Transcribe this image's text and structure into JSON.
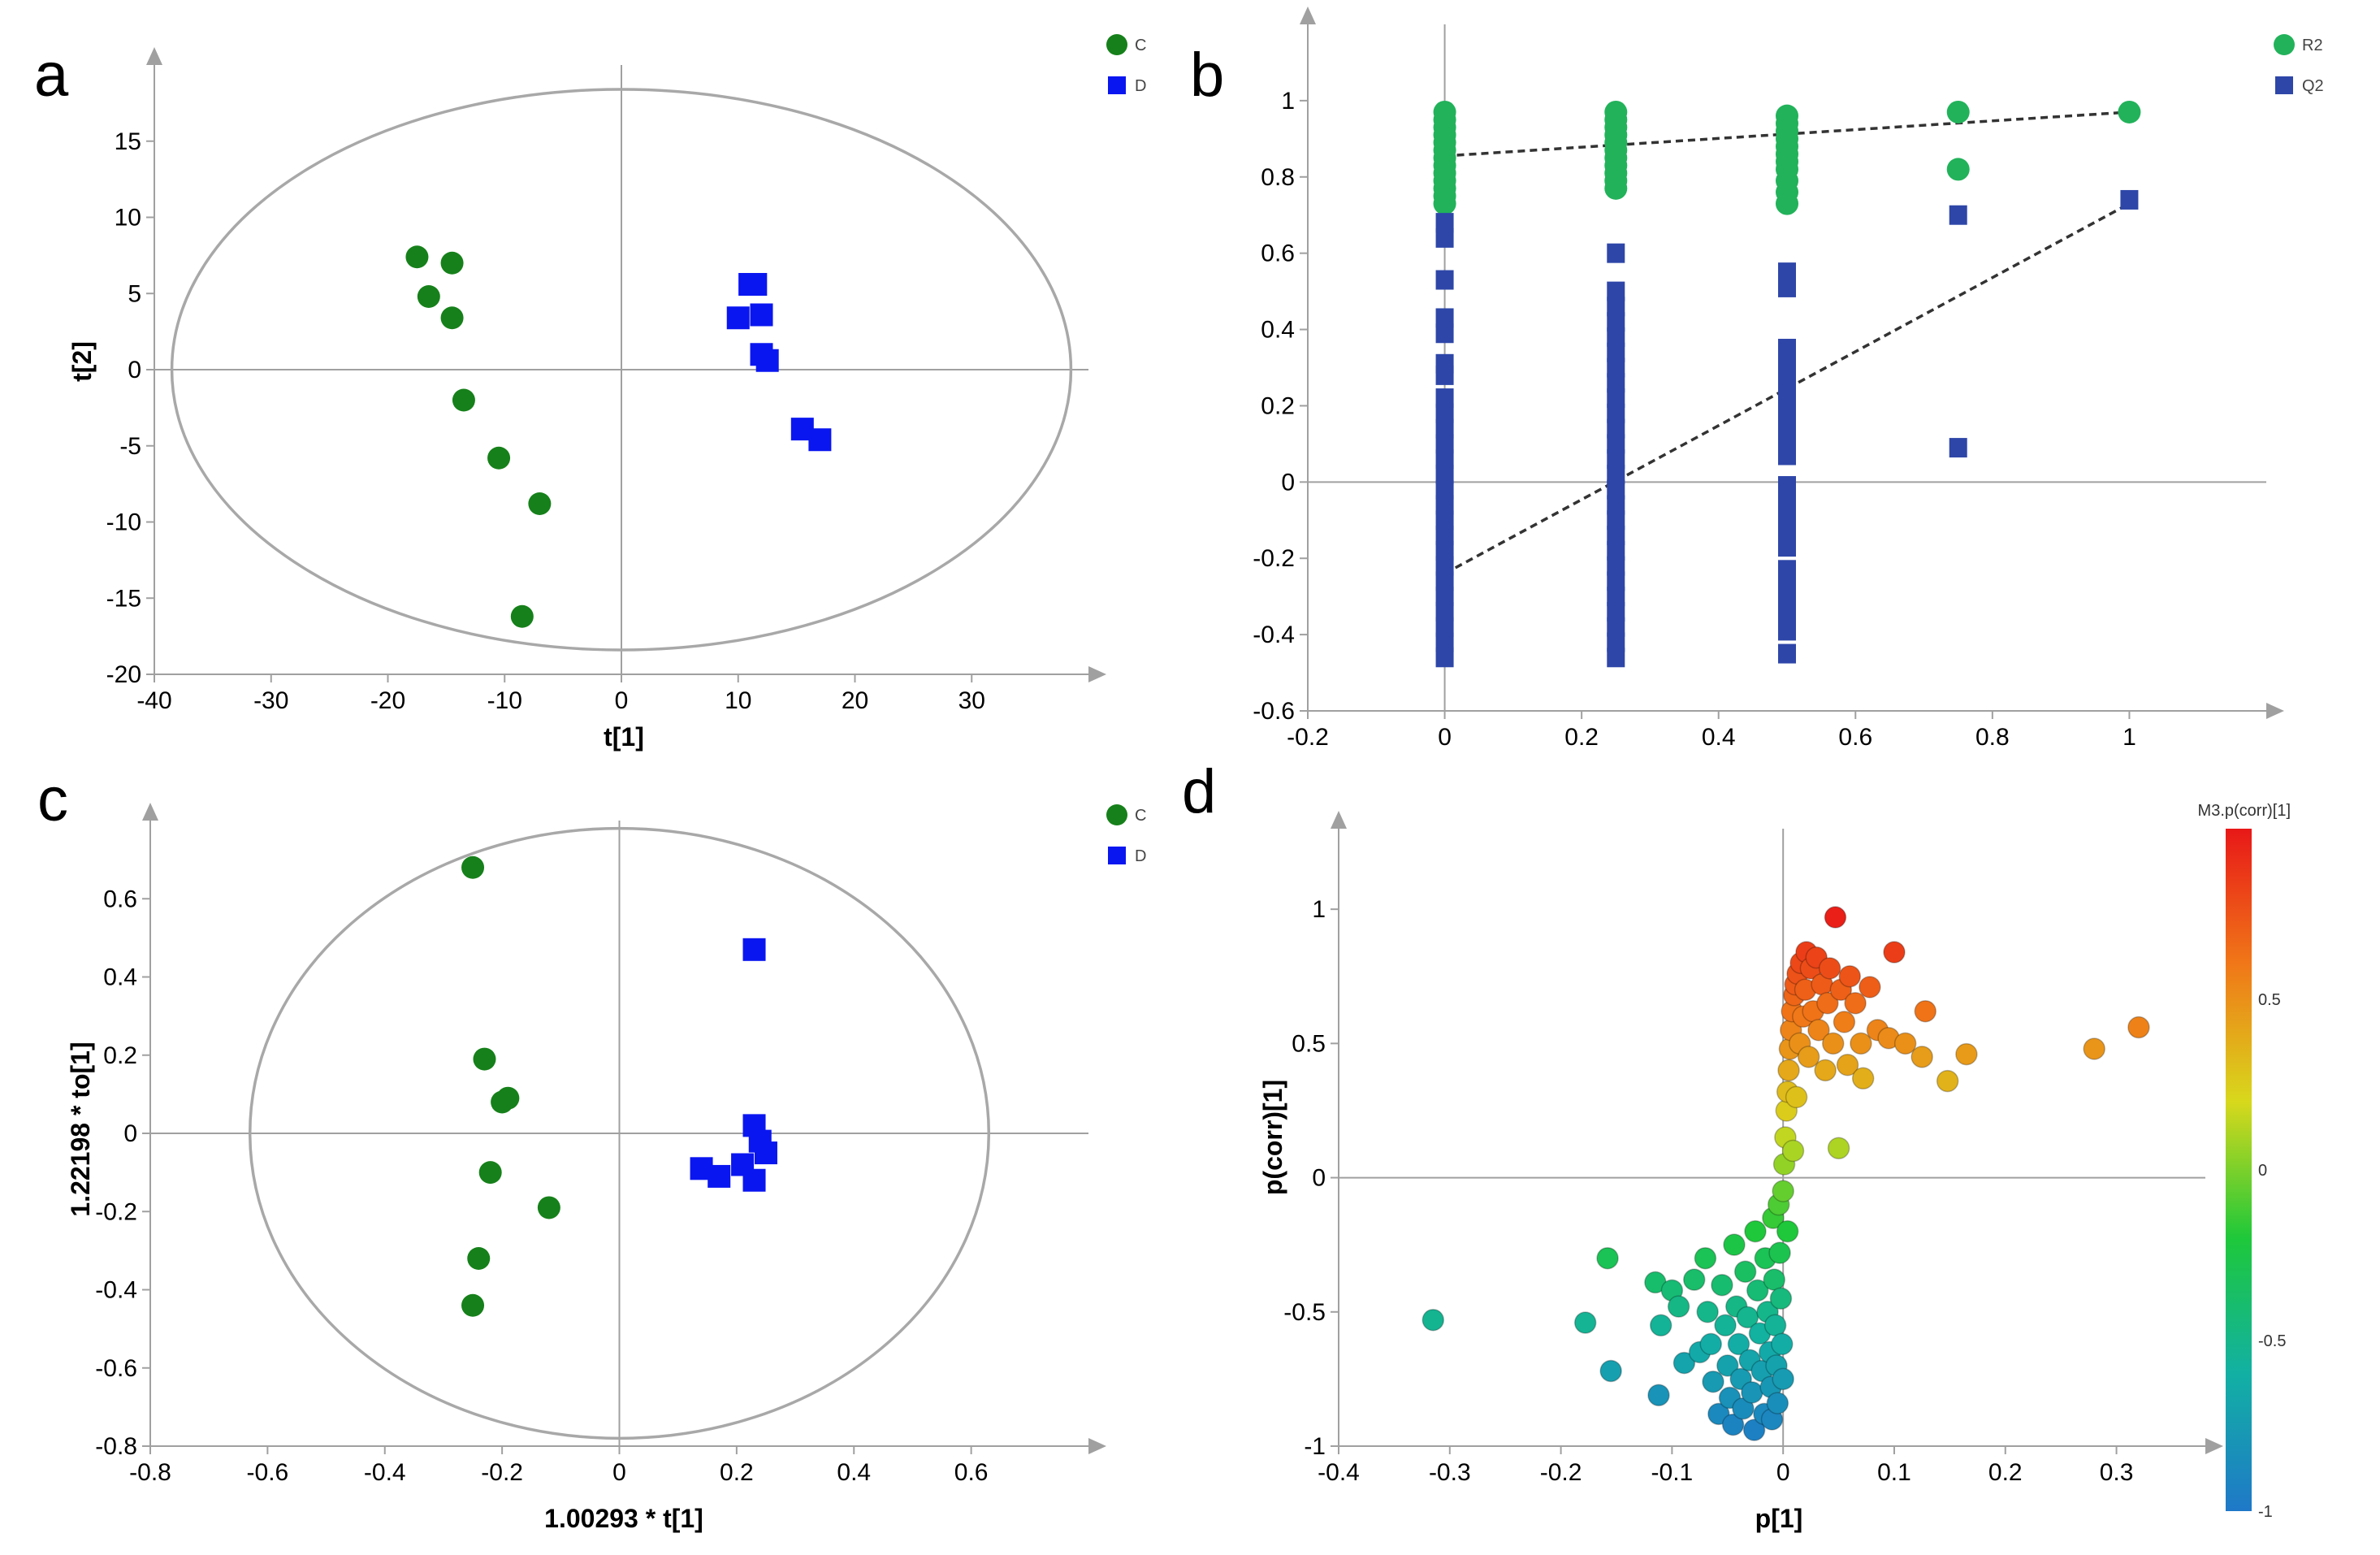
{
  "colors": {
    "green": "#16801a",
    "blue": "#0a16f0",
    "r2": "#22b25a",
    "q2": "#2e46a8",
    "axis": "#a0a0a0",
    "ellipse": "#a8a8a8",
    "colorscale": [
      "#1f78c8",
      "#12b0a4",
      "#1ec83a",
      "#d8d81c",
      "#f07818",
      "#e81818"
    ]
  },
  "chart_data": [
    {
      "id": "a",
      "type": "scatter",
      "panel_letter": "a",
      "xlabel": "t[1]",
      "ylabel": "t[2]",
      "xlim": [
        -40,
        40
      ],
      "ylim": [
        -20,
        20
      ],
      "xticks": [
        "-40",
        "-30",
        "-20",
        "-10",
        "0",
        "10",
        "20",
        "30"
      ],
      "yticks": [
        "-20",
        "-15",
        "-10",
        "-5",
        "0",
        "5",
        "10",
        "15"
      ],
      "ellipse": {
        "rx": 38.5,
        "ry": 18.4
      },
      "legend": [
        "C",
        "D"
      ],
      "series": [
        {
          "name": "C",
          "marker": "circle",
          "points": [
            [
              -17.5,
              7.4
            ],
            [
              -14.5,
              7.0
            ],
            [
              -16.5,
              4.8
            ],
            [
              -14.5,
              3.4
            ],
            [
              -13.5,
              -2.0
            ],
            [
              -10.5,
              -5.8
            ],
            [
              -7.0,
              -8.8
            ],
            [
              -8.5,
              -16.2
            ]
          ]
        },
        {
          "name": "D",
          "marker": "square",
          "points": [
            [
              11.0,
              5.6
            ],
            [
              11.5,
              5.6
            ],
            [
              12.0,
              3.6
            ],
            [
              10.0,
              3.4
            ],
            [
              12.0,
              1.0
            ],
            [
              12.5,
              0.6
            ],
            [
              15.5,
              -3.9
            ],
            [
              17.0,
              -4.6
            ]
          ]
        }
      ]
    },
    {
      "id": "b",
      "type": "scatter",
      "panel_letter": "b",
      "xlabel": "",
      "ylabel": "",
      "xlim": [
        -0.2,
        1.2
      ],
      "ylim": [
        -0.6,
        1.2
      ],
      "xticks": [
        "-0.2",
        "0",
        "0.2",
        "0.4",
        "0.6",
        "0.8",
        "1"
      ],
      "yticks": [
        "-0.6",
        "-0.4",
        "-0.2",
        "0",
        "0.2",
        "0.4",
        "0.6",
        "0.8",
        "1"
      ],
      "legend": [
        "R2",
        "Q2"
      ],
      "series": [
        {
          "name": "R2",
          "marker": "circle",
          "points": [
            [
              0,
              0.97
            ],
            [
              0,
              0.95
            ],
            [
              0,
              0.93
            ],
            [
              0,
              0.91
            ],
            [
              0,
              0.89
            ],
            [
              0,
              0.87
            ],
            [
              0,
              0.85
            ],
            [
              0,
              0.83
            ],
            [
              0,
              0.81
            ],
            [
              0,
              0.79
            ],
            [
              0,
              0.77
            ],
            [
              0,
              0.75
            ],
            [
              0,
              0.73
            ],
            [
              0.25,
              0.97
            ],
            [
              0.25,
              0.95
            ],
            [
              0.25,
              0.93
            ],
            [
              0.25,
              0.91
            ],
            [
              0.25,
              0.89
            ],
            [
              0.25,
              0.87
            ],
            [
              0.25,
              0.85
            ],
            [
              0.25,
              0.83
            ],
            [
              0.25,
              0.81
            ],
            [
              0.25,
              0.79
            ],
            [
              0.25,
              0.77
            ],
            [
              0.5,
              0.96
            ],
            [
              0.5,
              0.94
            ],
            [
              0.5,
              0.92
            ],
            [
              0.5,
              0.9
            ],
            [
              0.5,
              0.88
            ],
            [
              0.5,
              0.86
            ],
            [
              0.5,
              0.84
            ],
            [
              0.5,
              0.82
            ],
            [
              0.5,
              0.79
            ],
            [
              0.5,
              0.76
            ],
            [
              0.5,
              0.73
            ],
            [
              0.75,
              0.97
            ],
            [
              0.75,
              0.82
            ],
            [
              1,
              0.97
            ]
          ]
        },
        {
          "name": "Q2",
          "marker": "square",
          "points": [
            [
              0,
              0.68
            ],
            [
              0,
              0.64
            ],
            [
              0,
              0.53
            ],
            [
              0,
              0.43
            ],
            [
              0,
              0.39
            ],
            [
              0,
              0.31
            ],
            [
              0,
              0.28
            ],
            [
              0,
              0.22
            ],
            [
              0,
              0.18
            ],
            [
              0,
              0.14
            ],
            [
              0,
              0.1
            ],
            [
              0,
              0.06
            ],
            [
              0,
              0.02
            ],
            [
              0,
              -0.02
            ],
            [
              0,
              -0.06
            ],
            [
              0,
              -0.1
            ],
            [
              0,
              -0.14
            ],
            [
              0,
              -0.18
            ],
            [
              0,
              -0.22
            ],
            [
              0,
              -0.26
            ],
            [
              0,
              -0.3
            ],
            [
              0,
              -0.34
            ],
            [
              0,
              -0.38
            ],
            [
              0,
              -0.42
            ],
            [
              0,
              -0.46
            ],
            [
              0.25,
              0.6
            ],
            [
              0.25,
              0.5
            ],
            [
              0.25,
              0.46
            ],
            [
              0.25,
              0.42
            ],
            [
              0.25,
              0.38
            ],
            [
              0.25,
              0.34
            ],
            [
              0.25,
              0.3
            ],
            [
              0.25,
              0.26
            ],
            [
              0.25,
              0.22
            ],
            [
              0.25,
              0.18
            ],
            [
              0.25,
              0.14
            ],
            [
              0.25,
              0.1
            ],
            [
              0.25,
              0.06
            ],
            [
              0.25,
              0.02
            ],
            [
              0.25,
              -0.02
            ],
            [
              0.25,
              -0.06
            ],
            [
              0.25,
              -0.1
            ],
            [
              0.25,
              -0.14
            ],
            [
              0.25,
              -0.18
            ],
            [
              0.25,
              -0.22
            ],
            [
              0.25,
              -0.26
            ],
            [
              0.25,
              -0.3
            ],
            [
              0.25,
              -0.34
            ],
            [
              0.25,
              -0.38
            ],
            [
              0.25,
              -0.42
            ],
            [
              0.25,
              -0.46
            ],
            [
              0.5,
              0.55
            ],
            [
              0.5,
              0.51
            ],
            [
              0.5,
              0.35
            ],
            [
              0.5,
              0.31
            ],
            [
              0.5,
              0.27
            ],
            [
              0.5,
              0.23
            ],
            [
              0.5,
              0.19
            ],
            [
              0.5,
              0.15
            ],
            [
              0.5,
              0.11
            ],
            [
              0.5,
              0.07
            ],
            [
              0.5,
              -0.01
            ],
            [
              0.5,
              -0.05
            ],
            [
              0.5,
              -0.09
            ],
            [
              0.5,
              -0.13
            ],
            [
              0.5,
              -0.17
            ],
            [
              0.5,
              -0.23
            ],
            [
              0.5,
              -0.27
            ],
            [
              0.5,
              -0.31
            ],
            [
              0.5,
              -0.35
            ],
            [
              0.5,
              -0.39
            ],
            [
              0.5,
              -0.45
            ],
            [
              0.75,
              0.7
            ],
            [
              0.75,
              0.09
            ],
            [
              1,
              0.74
            ]
          ]
        }
      ],
      "lines": [
        {
          "name": "R2 fit",
          "from": [
            0,
            0.855
          ],
          "to": [
            1,
            0.97
          ]
        },
        {
          "name": "Q2 fit",
          "from": [
            0,
            -0.24
          ],
          "to": [
            1,
            0.73
          ]
        }
      ]
    },
    {
      "id": "c",
      "type": "scatter",
      "panel_letter": "c",
      "xlabel": "1.00293 * t[1]",
      "ylabel": "1.22198 * to[1]",
      "xlim": [
        -0.8,
        0.8
      ],
      "ylim": [
        -0.8,
        0.8
      ],
      "xticks": [
        "-0.8",
        "-0.6",
        "-0.4",
        "-0.2",
        "0",
        "0.2",
        "0.4",
        "0.6"
      ],
      "yticks": [
        "-0.8",
        "-0.6",
        "-0.4",
        "-0.2",
        "0",
        "0.2",
        "0.4",
        "0.6"
      ],
      "ellipse": {
        "rx": 0.63,
        "ry": 0.78
      },
      "legend": [
        "C",
        "D"
      ],
      "series": [
        {
          "name": "C",
          "marker": "circle",
          "points": [
            [
              -0.25,
              0.68
            ],
            [
              -0.23,
              0.19
            ],
            [
              -0.19,
              0.09
            ],
            [
              -0.2,
              0.08
            ],
            [
              -0.22,
              -0.1
            ],
            [
              -0.12,
              -0.19
            ],
            [
              -0.24,
              -0.32
            ],
            [
              -0.25,
              -0.44
            ]
          ]
        },
        {
          "name": "D",
          "marker": "square",
          "points": [
            [
              0.23,
              0.47
            ],
            [
              0.23,
              0.02
            ],
            [
              0.24,
              -0.02
            ],
            [
              0.25,
              -0.05
            ],
            [
              0.21,
              -0.08
            ],
            [
              0.14,
              -0.09
            ],
            [
              0.17,
              -0.11
            ],
            [
              0.23,
              -0.12
            ]
          ]
        }
      ]
    },
    {
      "id": "d",
      "type": "scatter",
      "panel_letter": "d",
      "xlabel": "p[1]",
      "ylabel": "p(corr)[1]",
      "xlim": [
        -0.4,
        0.38
      ],
      "ylim": [
        -1,
        1.3
      ],
      "xticks": [
        "-0.4",
        "-0.3",
        "-0.2",
        "-0.1",
        "0",
        "0.1",
        "0.2",
        "0.3"
      ],
      "yticks": [
        "-1",
        "-0.5",
        "0",
        "0.5",
        "1"
      ],
      "colorbar": {
        "label": "M3.p(corr)[1]",
        "min": -1,
        "max": 1,
        "ticks": [
          "-1",
          "-0.5",
          "0",
          "0.5"
        ]
      },
      "points": [
        [
          -0.315,
          -0.53
        ],
        [
          -0.178,
          -0.54
        ],
        [
          -0.158,
          -0.3
        ],
        [
          -0.155,
          -0.72
        ],
        [
          -0.115,
          -0.39
        ],
        [
          -0.11,
          -0.55
        ],
        [
          -0.112,
          -0.81
        ],
        [
          -0.1,
          -0.42
        ],
        [
          -0.094,
          -0.48
        ],
        [
          -0.089,
          -0.69
        ],
        [
          -0.08,
          -0.38
        ],
        [
          -0.075,
          -0.65
        ],
        [
          -0.07,
          -0.3
        ],
        [
          -0.068,
          -0.5
        ],
        [
          -0.065,
          -0.62
        ],
        [
          -0.063,
          -0.76
        ],
        [
          -0.058,
          -0.88
        ],
        [
          -0.055,
          -0.4
        ],
        [
          -0.052,
          -0.55
        ],
        [
          -0.05,
          -0.7
        ],
        [
          -0.048,
          -0.82
        ],
        [
          -0.045,
          -0.92
        ],
        [
          -0.044,
          -0.25
        ],
        [
          -0.042,
          -0.48
        ],
        [
          -0.04,
          -0.62
        ],
        [
          -0.038,
          -0.75
        ],
        [
          -0.036,
          -0.86
        ],
        [
          -0.034,
          -0.35
        ],
        [
          -0.032,
          -0.52
        ],
        [
          -0.03,
          -0.68
        ],
        [
          -0.028,
          -0.8
        ],
        [
          -0.026,
          -0.94
        ],
        [
          -0.025,
          -0.2
        ],
        [
          -0.023,
          -0.42
        ],
        [
          -0.021,
          -0.58
        ],
        [
          -0.019,
          -0.72
        ],
        [
          -0.017,
          -0.88
        ],
        [
          -0.016,
          -0.3
        ],
        [
          -0.014,
          -0.5
        ],
        [
          -0.012,
          -0.65
        ],
        [
          -0.011,
          -0.78
        ],
        [
          -0.01,
          -0.9
        ],
        [
          -0.009,
          -0.15
        ],
        [
          -0.008,
          -0.38
        ],
        [
          -0.007,
          -0.55
        ],
        [
          -0.006,
          -0.7
        ],
        [
          -0.005,
          -0.84
        ],
        [
          -0.004,
          -0.1
        ],
        [
          -0.003,
          -0.28
        ],
        [
          -0.002,
          -0.45
        ],
        [
          -0.001,
          -0.62
        ],
        [
          0.0,
          -0.05
        ],
        [
          0.0,
          -0.75
        ],
        [
          0.001,
          0.05
        ],
        [
          0.002,
          0.15
        ],
        [
          0.003,
          0.25
        ],
        [
          0.004,
          0.32
        ],
        [
          0.004,
          -0.2
        ],
        [
          0.005,
          0.4
        ],
        [
          0.006,
          0.48
        ],
        [
          0.007,
          0.55
        ],
        [
          0.008,
          0.62
        ],
        [
          0.009,
          0.1
        ],
        [
          0.01,
          0.68
        ],
        [
          0.011,
          0.72
        ],
        [
          0.012,
          0.3
        ],
        [
          0.013,
          0.76
        ],
        [
          0.015,
          0.5
        ],
        [
          0.016,
          0.8
        ],
        [
          0.018,
          0.6
        ],
        [
          0.02,
          0.7
        ],
        [
          0.021,
          0.84
        ],
        [
          0.023,
          0.45
        ],
        [
          0.025,
          0.78
        ],
        [
          0.027,
          0.62
        ],
        [
          0.03,
          0.82
        ],
        [
          0.032,
          0.55
        ],
        [
          0.035,
          0.72
        ],
        [
          0.038,
          0.4
        ],
        [
          0.04,
          0.65
        ],
        [
          0.042,
          0.78
        ],
        [
          0.045,
          0.5
        ],
        [
          0.047,
          0.97
        ],
        [
          0.05,
          0.11
        ],
        [
          0.052,
          0.7
        ],
        [
          0.055,
          0.58
        ],
        [
          0.058,
          0.42
        ],
        [
          0.06,
          0.75
        ],
        [
          0.065,
          0.65
        ],
        [
          0.07,
          0.5
        ],
        [
          0.072,
          0.37
        ],
        [
          0.078,
          0.71
        ],
        [
          0.085,
          0.55
        ],
        [
          0.095,
          0.52
        ],
        [
          0.1,
          0.84
        ],
        [
          0.11,
          0.5
        ],
        [
          0.125,
          0.45
        ],
        [
          0.128,
          0.62
        ],
        [
          0.148,
          0.36
        ],
        [
          0.165,
          0.46
        ],
        [
          0.28,
          0.48
        ],
        [
          0.32,
          0.56
        ]
      ]
    }
  ]
}
